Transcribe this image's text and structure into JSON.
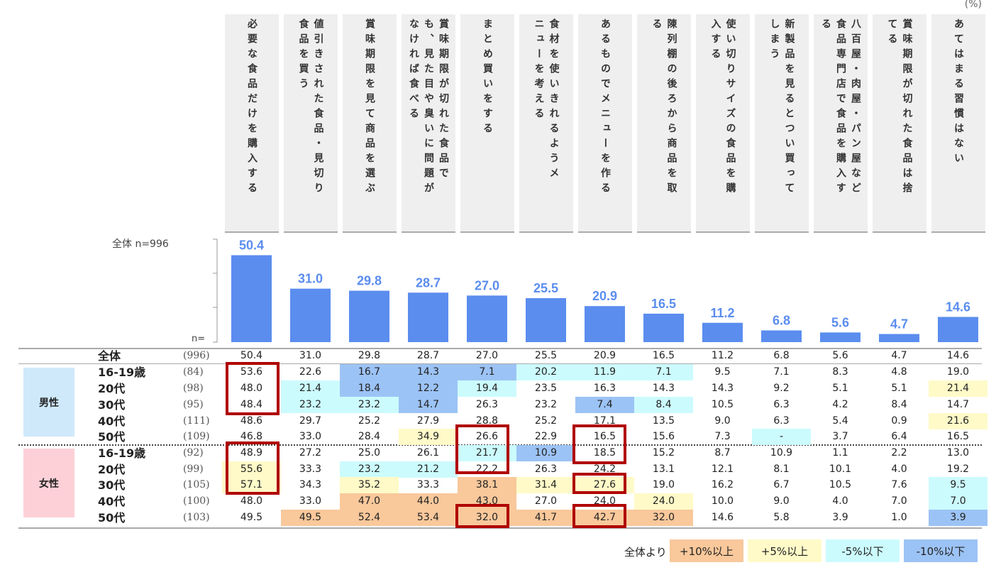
{
  "unit_label": "(%)",
  "overall_label": "全体 n=996",
  "n_prefix": "n=",
  "columns": [
    {
      "label": "必要な食品だけを購入する",
      "lines": [
        "必要な食品だけを購入する"
      ]
    },
    {
      "label": "値引きされた食品・見切り食品を買う",
      "lines": [
        "値引きされた食品・見切り",
        "食品を買う"
      ]
    },
    {
      "label": "賞味期限を見て商品を選ぶ",
      "lines": [
        "賞味期限を見て商品を選ぶ"
      ]
    },
    {
      "label": "賞味期限が切れた食品でも、見た目や臭いに問題がなければ食べる",
      "lines": [
        "賞味期限が切れた食品で",
        "も、見た目や臭いに問題が",
        "なければ食べる"
      ]
    },
    {
      "label": "まとめ買いをする",
      "lines": [
        "まとめ買いをする"
      ]
    },
    {
      "label": "食材を使いきれるようメニューを考える",
      "lines": [
        "食材を使いきれるようメ",
        "ニューを考える"
      ]
    },
    {
      "label": "あるものでメニューを作る",
      "lines": [
        "あるものでメニューを作る"
      ]
    },
    {
      "label": "陳列棚の後ろから商品を取る",
      "lines": [
        "陳列棚の後ろから商品を取",
        "る"
      ]
    },
    {
      "label": "使い切りサイズの食品を購入する",
      "lines": [
        "使い切りサイズの食品を購",
        "入する"
      ]
    },
    {
      "label": "新製品を見るとつい買ってしまう",
      "lines": [
        "新製品を見るとつい買って",
        "しまう"
      ]
    },
    {
      "label": "八百屋・肉屋・パン屋など食品専門店で食品を購入する",
      "lines": [
        "八百屋・肉屋・パン屋など",
        "食品専門店で食品を購入す",
        "る"
      ]
    },
    {
      "label": "賞味期限が切れた食品は捨てる",
      "lines": [
        "賞味期限が切れた食品は捨",
        "てる"
      ]
    },
    {
      "label": "あてはまる習慣はない",
      "lines": [
        "あてはまる習慣はない"
      ]
    }
  ],
  "chart_data": {
    "type": "bar",
    "categories": [
      "必要な食品だけを購入する",
      "値引きされた食品・見切り食品を買う",
      "賞味期限を見て商品を選ぶ",
      "賞味期限が切れた食品でも、見た目や臭いに問題がなければ食べる",
      "まとめ買いをする",
      "食材を使いきれるようメニューを考える",
      "あるものでメニューを作る",
      "陳列棚の後ろから商品を取る",
      "使い切りサイズの食品を購入する",
      "新製品を見るとつい買ってしまう",
      "八百屋・肉屋・パン屋など食品専門店で食品を購入する",
      "賞味期限が切れた食品は捨てる",
      "あてはまる習慣はない"
    ],
    "values": [
      50.4,
      31.0,
      29.8,
      28.7,
      27.0,
      25.5,
      20.9,
      16.5,
      11.2,
      6.8,
      5.6,
      4.7,
      14.6
    ],
    "value_labels": [
      "50.4",
      "31.0",
      "29.8",
      "28.7",
      "27.0",
      "25.5",
      "20.9",
      "16.5",
      "11.2",
      "6.8",
      "5.6",
      "4.7",
      "14.6"
    ],
    "ylim": [
      0,
      60
    ],
    "bar_color": "#5b8def",
    "label_color": "#5b8def"
  },
  "table": {
    "total_row": {
      "name": "全体",
      "n": "(996)",
      "values": [
        "50.4",
        "31.0",
        "29.8",
        "28.7",
        "27.0",
        "25.5",
        "20.9",
        "16.5",
        "11.2",
        "6.8",
        "5.6",
        "4.7",
        "14.6"
      ]
    },
    "groups": [
      {
        "sex": "男性",
        "sex_bg": "#cfe9fb",
        "rows": [
          {
            "name": "16-19歳",
            "n": "(84)",
            "values": [
              "53.6",
              "22.6",
              "16.7",
              "14.3",
              "7.1",
              "20.2",
              "11.9",
              "7.1",
              "9.5",
              "7.1",
              "8.3",
              "4.8",
              "19.0"
            ],
            "shades": [
              "",
              "",
              "b10m",
              "b10m",
              "b10m",
              "b5m",
              "b5m",
              "b5m",
              "",
              "",
              "",
              "",
              ""
            ]
          },
          {
            "name": "20代",
            "n": "(98)",
            "values": [
              "48.0",
              "21.4",
              "18.4",
              "12.2",
              "19.4",
              "23.5",
              "16.3",
              "14.3",
              "14.3",
              "9.2",
              "5.1",
              "5.1",
              "21.4"
            ],
            "shades": [
              "",
              "b5m",
              "b10m",
              "b10m",
              "b5m",
              "",
              "",
              "",
              "",
              "",
              "",
              "",
              "b5p"
            ]
          },
          {
            "name": "30代",
            "n": "(95)",
            "values": [
              "48.4",
              "23.2",
              "23.2",
              "14.7",
              "26.3",
              "23.2",
              "7.4",
              "8.4",
              "10.5",
              "6.3",
              "4.2",
              "8.4",
              "14.7"
            ],
            "shades": [
              "",
              "b5m",
              "b5m",
              "b10m",
              "",
              "",
              "b10m",
              "b5m",
              "",
              "",
              "",
              "",
              ""
            ]
          },
          {
            "name": "40代",
            "n": "(111)",
            "values": [
              "48.6",
              "29.7",
              "25.2",
              "27.9",
              "28.8",
              "25.2",
              "17.1",
              "13.5",
              "9.0",
              "6.3",
              "5.4",
              "0.9",
              "21.6"
            ],
            "shades": [
              "",
              "",
              "",
              "",
              "",
              "",
              "",
              "",
              "",
              "",
              "",
              "",
              "b5p"
            ]
          },
          {
            "name": "50代",
            "n": "(109)",
            "values": [
              "46.8",
              "33.0",
              "28.4",
              "34.9",
              "26.6",
              "22.9",
              "16.5",
              "15.6",
              "7.3",
              "-",
              "3.7",
              "6.4",
              "16.5"
            ],
            "shades": [
              "",
              "",
              "",
              "b5p",
              "",
              "",
              "",
              "",
              "",
              "b5m",
              "",
              "",
              ""
            ]
          }
        ]
      },
      {
        "sex": "女性",
        "sex_bg": "#fdd0d7",
        "rows": [
          {
            "name": "16-19歳",
            "n": "(92)",
            "values": [
              "48.9",
              "27.2",
              "25.0",
              "26.1",
              "21.7",
              "10.9",
              "18.5",
              "15.2",
              "8.7",
              "10.9",
              "1.1",
              "2.2",
              "13.0"
            ],
            "shades": [
              "",
              "",
              "",
              "",
              "b5m",
              "b10m",
              "",
              "",
              "",
              "",
              "",
              "",
              ""
            ]
          },
          {
            "name": "20代",
            "n": "(99)",
            "values": [
              "55.6",
              "33.3",
              "23.2",
              "21.2",
              "22.2",
              "26.3",
              "24.2",
              "13.1",
              "12.1",
              "8.1",
              "10.1",
              "4.0",
              "19.2"
            ],
            "shades": [
              "b5p",
              "",
              "b5m",
              "b5m",
              "",
              "",
              "",
              "",
              "",
              "",
              "",
              "",
              ""
            ]
          },
          {
            "name": "30代",
            "n": "(105)",
            "values": [
              "57.1",
              "34.3",
              "35.2",
              "33.3",
              "38.1",
              "31.4",
              "27.6",
              "19.0",
              "16.2",
              "6.7",
              "10.5",
              "7.6",
              "9.5"
            ],
            "shades": [
              "b5p",
              "",
              "b5p",
              "",
              "b10p",
              "b5p",
              "b5p",
              "",
              "",
              "",
              "",
              "",
              "b5m"
            ]
          },
          {
            "name": "40代",
            "n": "(100)",
            "values": [
              "48.0",
              "33.0",
              "47.0",
              "44.0",
              "43.0",
              "27.0",
              "24.0",
              "24.0",
              "10.0",
              "9.0",
              "4.0",
              "7.0",
              "7.0"
            ],
            "shades": [
              "",
              "",
              "b10p",
              "b10p",
              "b10p",
              "",
              "",
              "b5p",
              "",
              "",
              "",
              "",
              "b5m"
            ]
          },
          {
            "name": "50代",
            "n": "(103)",
            "values": [
              "49.5",
              "49.5",
              "52.4",
              "53.4",
              "32.0",
              "41.7",
              "42.7",
              "32.0",
              "14.6",
              "5.8",
              "3.9",
              "1.0",
              "3.9"
            ],
            "shades": [
              "",
              "b10p",
              "b10p",
              "b10p",
              "b10p",
              "b10p",
              "b10p",
              "b10p",
              "",
              "",
              "",
              "",
              "b10m"
            ]
          }
        ]
      }
    ]
  },
  "legend": {
    "lead": "全体より",
    "items": [
      {
        "label": "+10%以上",
        "color": "#f9c89b"
      },
      {
        "label": "+5%以上",
        "color": "#fffac8"
      },
      {
        "label": "-5%以下",
        "color": "#ccfbfd"
      },
      {
        "label": "-10%以下",
        "color": "#9cc3f5"
      }
    ]
  },
  "highlight_color": "#b00000"
}
